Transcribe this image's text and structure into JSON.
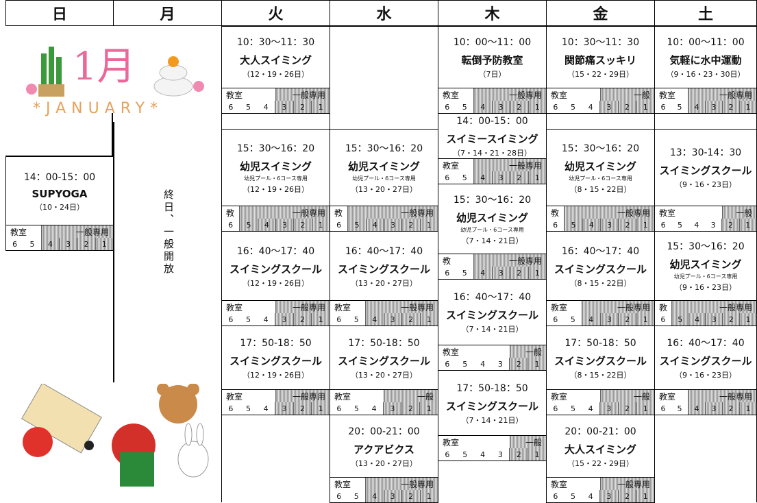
{
  "header": {
    "days": [
      "日",
      "月",
      "火",
      "水",
      "木",
      "金",
      "土"
    ]
  },
  "month": {
    "kanji": "1月",
    "english": "*JANUARY*"
  },
  "monday_note": "終日、一般開放",
  "lane_numbers": [
    "6",
    "5",
    "4",
    "3",
    "2",
    "1"
  ],
  "classes": [
    [
      {
        "time": "14：00-15：00",
        "name": "SUPYOGA",
        "dates": "（10・24日）",
        "room": "教室",
        "general": "一般専用",
        "hatched": 4
      }
    ],
    [],
    [
      {
        "time": "10：30〜11：30",
        "name": "大人スイミング",
        "dates": "（12・19・26日）",
        "room": "教室",
        "general": "一般専用",
        "hatched": 3
      },
      {
        "time": "15：30〜16：20",
        "name": "幼児スイミング",
        "detail": "幼児プール・6コース専用",
        "dates": "（12・19・26日）",
        "room": "教",
        "general": "一般専用",
        "hatched": 5
      },
      {
        "time": "16：40〜17：40",
        "name": "スイミングスクール",
        "dates": "（12・19・26日）",
        "room": "教室",
        "general": "一般専用",
        "hatched": 3
      },
      {
        "time": "17：50-18：50",
        "name": "スイミングスクール",
        "dates": "（12・19・26日）",
        "room": "教室",
        "general": "一般専用",
        "hatched": 3
      }
    ],
    [
      {
        "time": "15：30〜16：20",
        "name": "幼児スイミング",
        "detail": "幼児プール・6コース専用",
        "dates": "（13・20・27日）",
        "room": "教",
        "general": "一般専用",
        "hatched": 5
      },
      {
        "time": "16：40〜17：40",
        "name": "スイミングスクール",
        "dates": "（13・20・27日）",
        "room": "教室",
        "general": "一般専用",
        "hatched": 4
      },
      {
        "time": "17：50-18：50",
        "name": "スイミングスクール",
        "dates": "（13・20・27日）",
        "room": "教室",
        "general": "一般",
        "hatched": 3
      },
      {
        "time": "20：00-21：00",
        "name": "アクアビクス",
        "dates": "（13・20・27日）",
        "room": "教室",
        "general": "一般専用",
        "hatched": 4
      }
    ],
    [
      {
        "time": "10：00〜11：00",
        "name": "転倒予防教室",
        "dates": "（7日）",
        "room": "教室",
        "general": "一般専用",
        "hatched": 4
      },
      {
        "time": "14：00-15：00",
        "name": "スイミースイミング",
        "dates": "（7・14・21・28日）",
        "room": "教室",
        "general": "一般専用",
        "hatched": 4
      },
      {
        "time": "15：30〜16：20",
        "name": "幼児スイミング",
        "detail": "幼児プール・6コース専用",
        "dates": "（7・14・21日）",
        "room": "教",
        "general": "一般専用",
        "hatched": 4
      },
      {
        "time": "16：40〜17：40",
        "name": "スイミングスクール",
        "dates": "（7・14・21日）",
        "room": "教室",
        "general": "一般",
        "hatched": 2
      },
      {
        "time": "17：50-18：50",
        "name": "スイミングスクール",
        "dates": "（7・14・21日）",
        "room": "教室",
        "general": "一般",
        "hatched": 2
      }
    ],
    [
      {
        "time": "10：30〜11：30",
        "name": "関節痛スッキリ",
        "dates": "（15・22・29日）",
        "room": "教室",
        "general": "一般",
        "hatched": 3
      },
      {
        "time": "15：30〜16：20",
        "name": "幼児スイミング",
        "detail": "幼児プール・6コース専用",
        "dates": "（8・15・22日）",
        "room": "教",
        "general": "一般専用",
        "hatched": 5
      },
      {
        "time": "16：40〜17：40",
        "name": "スイミングスクール",
        "dates": "（8・15・22日）",
        "room": "教室",
        "general": "一般専用",
        "hatched": 4
      },
      {
        "time": "17：50-18：50",
        "name": "スイミングスクール",
        "dates": "（8・15・22日）",
        "room": "教室",
        "general": "一般",
        "hatched": 3
      },
      {
        "time": "20：00-21：00",
        "name": "大人スイミング",
        "dates": "（15・22・29日）",
        "room": "教室",
        "general": "一般専用",
        "hatched": 3
      }
    ],
    [
      {
        "time": "10：00〜11：00",
        "name": "気軽に水中運動",
        "dates": "（9・16・23・30日）",
        "room": "教室",
        "general": "一般専用",
        "hatched": 4
      },
      {
        "time": "13：30-14：30",
        "name": "スイミングスクール",
        "dates": "（9・16・23日）",
        "room": "教室",
        "general": "一般",
        "hatched": 2
      },
      {
        "time": "15：30〜16：20",
        "name": "幼児スイミング",
        "detail": "幼児プール・6コース専用",
        "dates": "（9・16・23日）",
        "room": "教",
        "general": "一般専用",
        "hatched": 5
      },
      {
        "time": "16：40〜17：40",
        "name": "スイミングスクール",
        "dates": "（9・16・23日）",
        "room": "教室",
        "general": "一般専用",
        "hatched": 4
      }
    ]
  ]
}
